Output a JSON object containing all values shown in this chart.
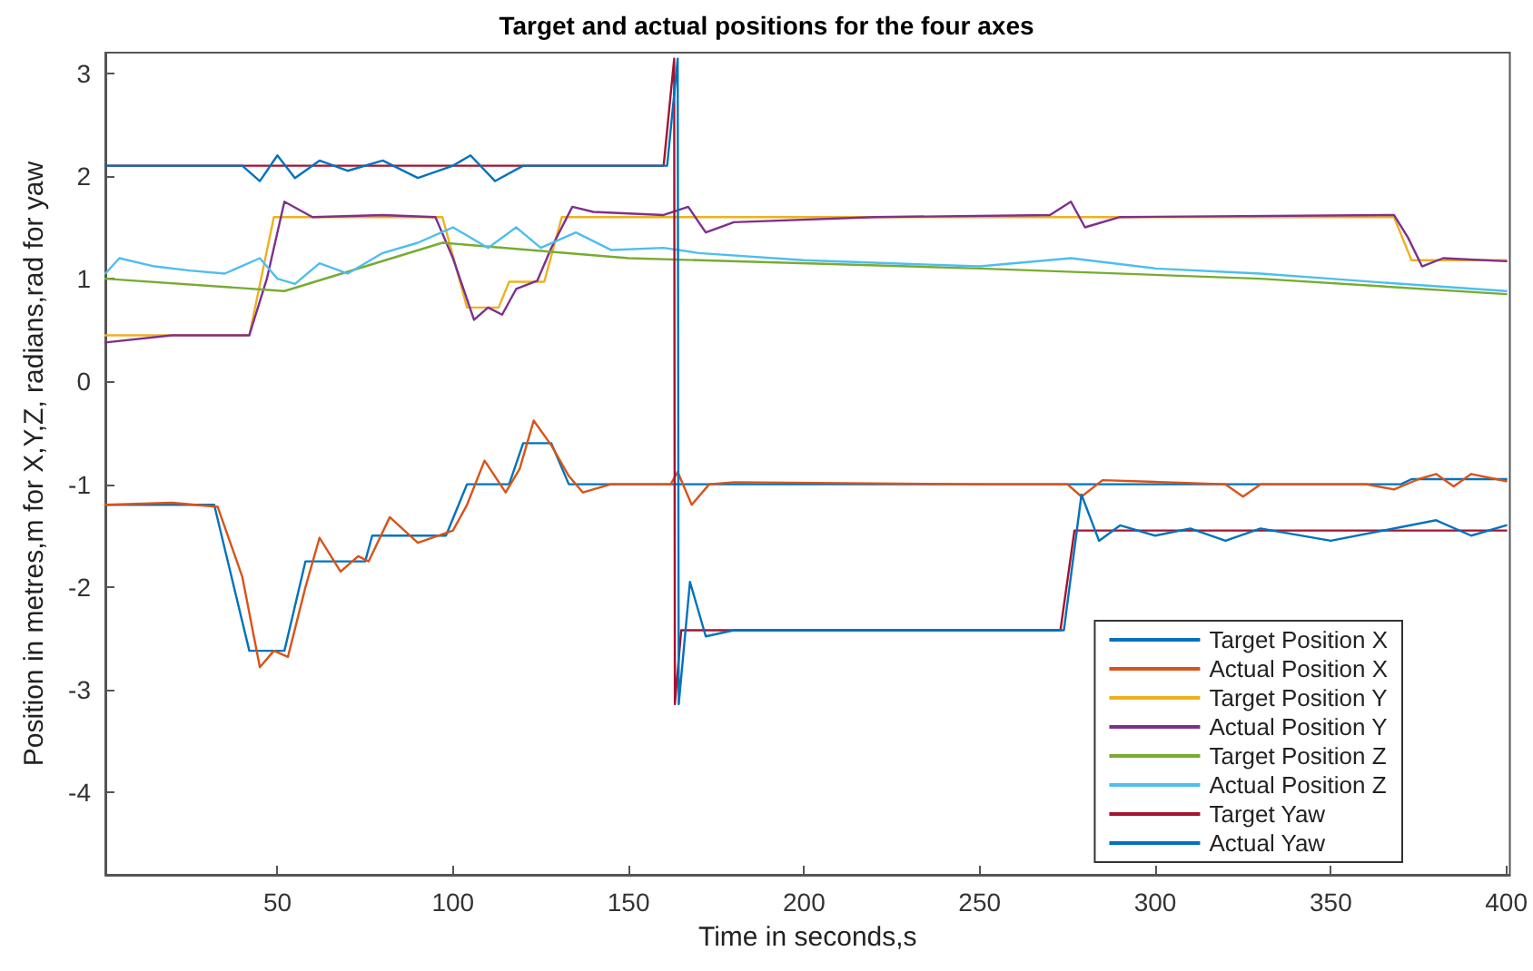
{
  "chart_data": {
    "type": "line",
    "title": "Target and actual positions for the four axes",
    "xlabel": "Time in seconds,s",
    "ylabel": "Position in metres,m for X,Y,Z, radians,rad for yaw",
    "xlim": [
      1,
      401
    ],
    "xticks": [
      50,
      100,
      150,
      200,
      250,
      300,
      350,
      400
    ],
    "ylim": [
      -4.8,
      3.2
    ],
    "yticks": [
      -4,
      -3,
      -2,
      -1,
      0,
      1,
      2,
      3
    ],
    "grid": false,
    "legend": "bottom right",
    "marker": "none",
    "line_style": "solid",
    "series": [
      {
        "name": "Target Position X",
        "color": "#0072bd",
        "x": [
          1,
          32,
          42,
          52,
          58,
          75,
          77,
          98,
          104,
          116,
          120,
          128,
          133,
          370,
          373,
          400
        ],
        "values": [
          -1.2,
          -1.2,
          -2.62,
          -2.62,
          -1.75,
          -1.75,
          -1.5,
          -1.5,
          -1,
          -1,
          -0.6,
          -0.6,
          -1,
          -1,
          -0.95,
          -0.95
        ]
      },
      {
        "name": "Actual Position X",
        "color": "#d95319",
        "x": [
          1,
          20,
          33,
          40,
          45,
          49,
          53,
          58,
          62,
          68,
          73,
          76,
          82,
          90,
          100,
          104,
          109,
          115,
          119,
          123,
          128,
          133,
          137,
          145,
          162,
          164,
          168,
          173,
          180,
          250,
          275,
          279,
          285,
          320,
          325,
          330,
          360,
          368,
          375,
          380,
          385,
          390,
          400
        ],
        "values": [
          -1.2,
          -1.18,
          -1.22,
          -1.9,
          -2.78,
          -2.62,
          -2.68,
          -2,
          -1.52,
          -1.85,
          -1.7,
          -1.75,
          -1.32,
          -1.57,
          -1.45,
          -1.2,
          -0.77,
          -1.08,
          -0.85,
          -0.38,
          -0.62,
          -0.92,
          -1.08,
          -1,
          -1,
          -0.88,
          -1.2,
          -1,
          -0.98,
          -1,
          -1,
          -1.12,
          -0.96,
          -1,
          -1.12,
          -1,
          -1,
          -1.05,
          -0.95,
          -0.9,
          -1.02,
          -0.9,
          -0.97
        ]
      },
      {
        "name": "Target Position Y",
        "color": "#edb120",
        "x": [
          1,
          42,
          49,
          97,
          104,
          113,
          116,
          126,
          131,
          368,
          373,
          400
        ],
        "values": [
          0.45,
          0.45,
          1.6,
          1.6,
          0.72,
          0.72,
          0.97,
          0.97,
          1.6,
          1.6,
          1.18,
          1.18
        ]
      },
      {
        "name": "Actual Position Y",
        "color": "#7e2f8e",
        "x": [
          1,
          20,
          42,
          47,
          52,
          60,
          80,
          95,
          100,
          106,
          110,
          114,
          118,
          124,
          128,
          134,
          140,
          160,
          167,
          172,
          180,
          220,
          270,
          276,
          280,
          290,
          368,
          372,
          376,
          382,
          400
        ],
        "values": [
          0.38,
          0.45,
          0.45,
          1,
          1.75,
          1.6,
          1.62,
          1.6,
          1.2,
          0.6,
          0.72,
          0.65,
          0.9,
          0.98,
          1.3,
          1.7,
          1.65,
          1.62,
          1.7,
          1.45,
          1.55,
          1.6,
          1.62,
          1.75,
          1.5,
          1.6,
          1.62,
          1.4,
          1.12,
          1.2,
          1.17
        ]
      },
      {
        "name": "Target Position Z",
        "color": "#77ac30",
        "x": [
          1,
          52,
          97,
          150,
          250,
          330,
          400
        ],
        "values": [
          1,
          0.88,
          1.35,
          1.2,
          1.1,
          1,
          0.85
        ]
      },
      {
        "name": "Actual Position Z",
        "color": "#4dbeee",
        "x": [
          1,
          5,
          15,
          25,
          35,
          45,
          50,
          55,
          62,
          70,
          80,
          90,
          100,
          110,
          118,
          125,
          135,
          145,
          160,
          170,
          200,
          250,
          276,
          300,
          330,
          350,
          370,
          400
        ],
        "values": [
          1.05,
          1.2,
          1.12,
          1.08,
          1.05,
          1.2,
          1,
          0.95,
          1.15,
          1.05,
          1.25,
          1.35,
          1.5,
          1.3,
          1.5,
          1.3,
          1.45,
          1.28,
          1.3,
          1.25,
          1.18,
          1.12,
          1.2,
          1.1,
          1.05,
          1,
          0.95,
          0.88
        ]
      },
      {
        "name": "Target Yaw",
        "color": "#a2142f",
        "x": [
          1,
          160,
          163,
          163.2,
          165,
          273,
          277,
          400
        ],
        "values": [
          2.1,
          2.1,
          3.14,
          -3.14,
          -2.42,
          -2.42,
          -1.45,
          -1.45
        ]
      },
      {
        "name": "Actual Yaw",
        "color": "#0072bd",
        "x": [
          1,
          40,
          45,
          50,
          55,
          62,
          70,
          80,
          90,
          100,
          105,
          112,
          120,
          161,
          164,
          164.3,
          167.5,
          172,
          180,
          274,
          279,
          284,
          290,
          300,
          310,
          320,
          330,
          350,
          380,
          390,
          400
        ],
        "values": [
          2.1,
          2.1,
          1.95,
          2.2,
          1.98,
          2.15,
          2.05,
          2.15,
          1.98,
          2.1,
          2.2,
          1.95,
          2.1,
          2.1,
          3.14,
          -3.14,
          -1.95,
          -2.48,
          -2.42,
          -2.42,
          -1.1,
          -1.55,
          -1.4,
          -1.5,
          -1.43,
          -1.55,
          -1.43,
          -1.55,
          -1.35,
          -1.5,
          -1.4
        ]
      }
    ]
  }
}
